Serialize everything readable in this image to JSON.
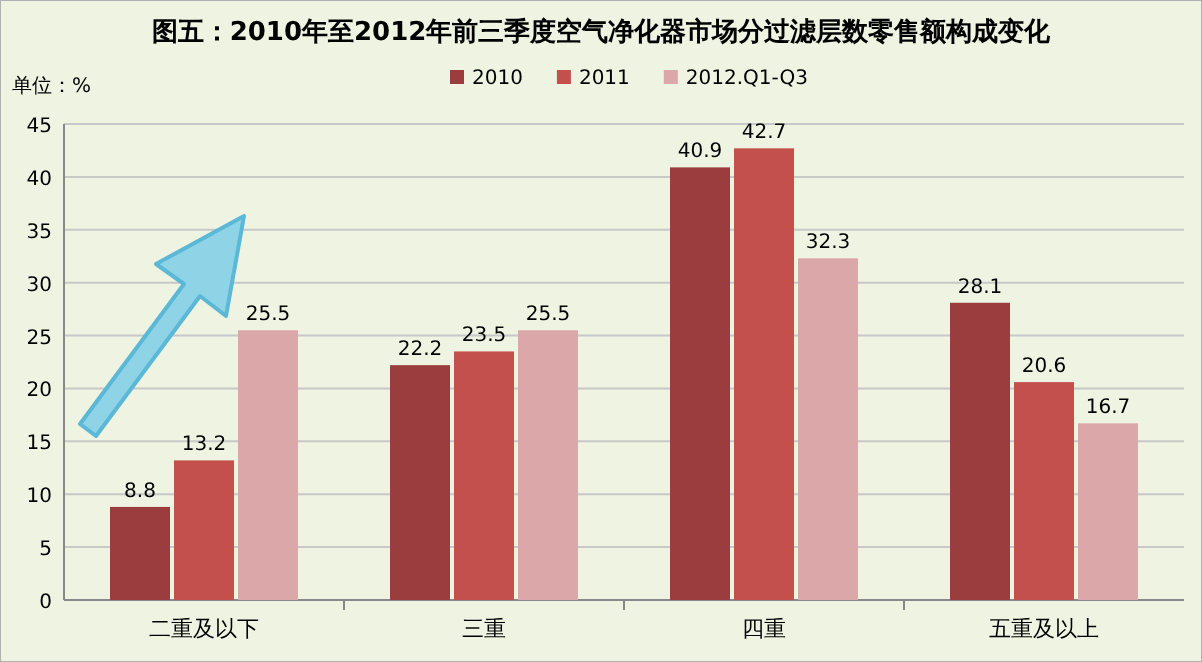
{
  "chart_data": {
    "type": "bar",
    "title": "图五：2010年至2012年前三季度空气净化器市场分过滤层数零售额构成变化",
    "annotations": [
      "单位：%"
    ],
    "categories": [
      "二重及以下",
      "三重",
      "四重",
      "五重及以上"
    ],
    "series": [
      {
        "name": "2010",
        "color": "#9b3c3e",
        "values": [
          8.8,
          22.2,
          40.9,
          28.1
        ]
      },
      {
        "name": "2011",
        "color": "#c4504e",
        "values": [
          13.2,
          23.5,
          42.7,
          20.6
        ]
      },
      {
        "name": "2012.Q1-Q3",
        "color": "#dba7a8",
        "values": [
          25.5,
          25.5,
          32.3,
          16.7
        ]
      }
    ],
    "ylim": [
      0,
      45
    ],
    "yticks": [
      0,
      5,
      10,
      15,
      20,
      25,
      30,
      35,
      40,
      45
    ],
    "grid": "y",
    "legend": "top",
    "data_labels": true
  }
}
